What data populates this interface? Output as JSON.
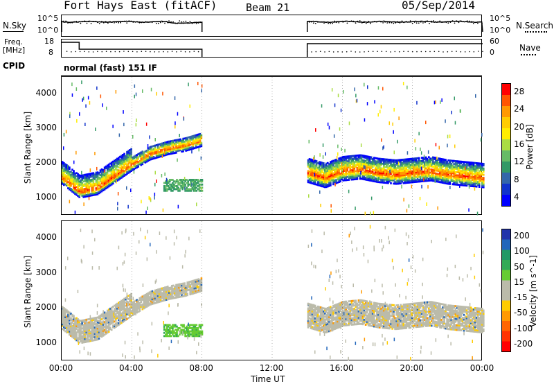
{
  "header": {
    "station": "Fort Hays East (fitACF)",
    "beam": "Beam 21",
    "date": "05/Sep/2014"
  },
  "params": {
    "nsky_label": "N.Sky",
    "nsky_ticks": [
      "10^5",
      "10^0"
    ],
    "nsearch_label": "N.Search",
    "nsearch_ticks": [
      "10^5",
      "10^0"
    ],
    "freq_label": "Freq.",
    "freq_unit": "[MHz]",
    "freq_ticks": [
      "18",
      "8"
    ],
    "nave_label": "Nave",
    "nave_ticks": [
      "60",
      "0"
    ],
    "cpid_label": "CPID",
    "cpid_value": "normal (fast) 151 IF"
  },
  "axes": {
    "xlabel": "Time UT",
    "ylabel": "Slant Range [km]",
    "x_ticks": [
      "00:00",
      "04:00",
      "08:00",
      "12:00",
      "16:00",
      "20:00",
      "00:00"
    ],
    "y_ticks": [
      "1000",
      "2000",
      "3000",
      "4000"
    ]
  },
  "power_scale": {
    "label": "Power [dB]",
    "ticks": [
      "28",
      "24",
      "20",
      "16",
      "12",
      "8",
      "4"
    ],
    "colors": [
      "#ff0000",
      "#ff5500",
      "#ff9900",
      "#ffcc00",
      "#ffee00",
      "#aadd44",
      "#66bb66",
      "#339966",
      "#3366aa",
      "#1133cc",
      "#0000ff"
    ]
  },
  "velocity_scale": {
    "label": "Velocity [m s^-1]",
    "ticks": [
      "200",
      "100",
      "50",
      "15",
      "-15",
      "-50",
      "-100",
      "-200"
    ],
    "colors": [
      "#2233aa",
      "#2266bb",
      "#229966",
      "#33aa55",
      "#66cc33",
      "#bbbbaa",
      "#bbbbaa",
      "#ffcc00",
      "#ff9900",
      "#ff6600",
      "#ff3300",
      "#ff0000"
    ]
  },
  "chart_data": {
    "type": "heatmap",
    "x_range_hours": [
      0,
      24
    ],
    "y_range_km": [
      500,
      4500
    ],
    "data_gaps_hours": [
      [
        8,
        14
      ]
    ],
    "power_bands": [
      {
        "t": [
          0,
          1,
          2,
          3,
          4,
          5,
          6,
          7,
          8
        ],
        "center_km": [
          1550,
          1150,
          1250,
          1600,
          1950,
          2250,
          2400,
          2500,
          2650
        ]
      },
      {
        "t": [
          14,
          15,
          16,
          17,
          18,
          19,
          20,
          21,
          22,
          23,
          24
        ],
        "center_km": [
          1700,
          1550,
          1750,
          1800,
          1700,
          1650,
          1700,
          1750,
          1650,
          1600,
          1550
        ]
      }
    ]
  }
}
